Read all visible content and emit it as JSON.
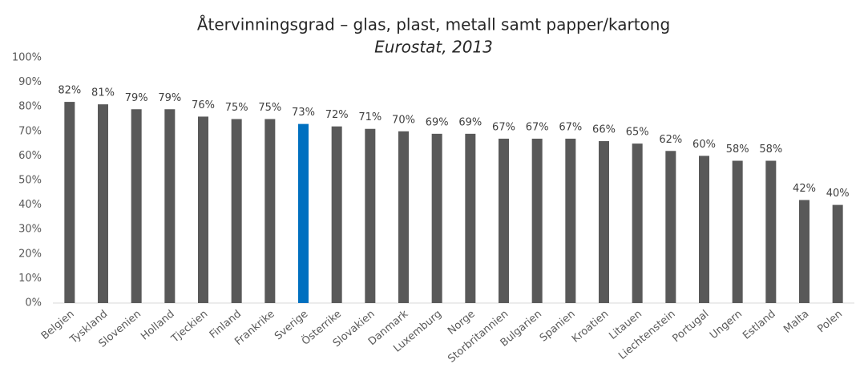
{
  "chart_data": {
    "type": "bar",
    "title": "Återvinningsgrad – glas, plast, metall samt papper/kartong",
    "subtitle": "Eurostat, 2013",
    "categories": [
      "Belgien",
      "Tyskland",
      "Slovenien",
      "Holland",
      "Tjeckien",
      "Finland",
      "Frankrike",
      "Sverige",
      "Österrike",
      "Slovakien",
      "Danmark",
      "Luxemburg",
      "Norge",
      "Storbritannien",
      "Bulgarien",
      "Spanien",
      "Kroatien",
      "Litauen",
      "Liechtenstein",
      "Portugal",
      "Ungern",
      "Estland",
      "Malta",
      "Polen"
    ],
    "values": [
      82,
      81,
      79,
      79,
      76,
      75,
      75,
      73,
      72,
      71,
      70,
      69,
      69,
      67,
      67,
      67,
      66,
      65,
      62,
      60,
      58,
      58,
      42,
      40
    ],
    "value_labels": [
      "82%",
      "81%",
      "79%",
      "79%",
      "76%",
      "75%",
      "75%",
      "73%",
      "72%",
      "71%",
      "70%",
      "69%",
      "69%",
      "67%",
      "67%",
      "67%",
      "66%",
      "65%",
      "62%",
      "60%",
      "58%",
      "58%",
      "42%",
      "40%"
    ],
    "colors": [
      "#595959",
      "#595959",
      "#595959",
      "#595959",
      "#595959",
      "#595959",
      "#595959",
      "#0070c0",
      "#595959",
      "#595959",
      "#595959",
      "#595959",
      "#595959",
      "#595959",
      "#595959",
      "#595959",
      "#595959",
      "#595959",
      "#595959",
      "#595959",
      "#595959",
      "#595959",
      "#595959",
      "#595959"
    ],
    "ylim": [
      0,
      100
    ],
    "yticks": [
      {
        "value": 0,
        "label": "0%"
      },
      {
        "value": 10,
        "label": "10%"
      },
      {
        "value": 20,
        "label": "20%"
      },
      {
        "value": 30,
        "label": "30%"
      },
      {
        "value": 40,
        "label": "40%"
      },
      {
        "value": 50,
        "label": "50%"
      },
      {
        "value": 60,
        "label": "60%"
      },
      {
        "value": 70,
        "label": "70%"
      },
      {
        "value": 80,
        "label": "80%"
      },
      {
        "value": 90,
        "label": "90%"
      },
      {
        "value": 100,
        "label": "100%"
      }
    ],
    "grid": false
  }
}
